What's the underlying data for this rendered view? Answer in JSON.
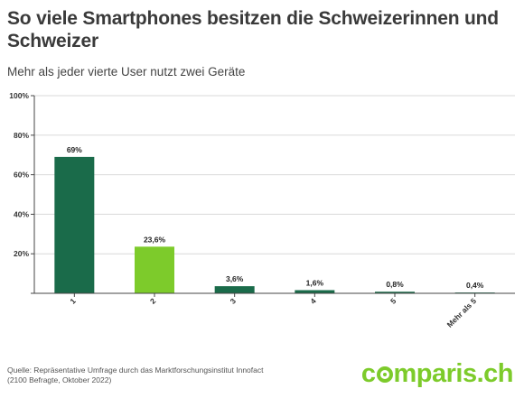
{
  "header": {
    "title": "So viele Smartphones besitzen die Schweizerinnen und Schweizer",
    "subtitle": "Mehr als jeder vierte User nutzt zwei Geräte"
  },
  "footer": {
    "source_line1": "Quelle: Repräsentative Umfrage durch das Marktforschungsinstitut Innofact",
    "source_line2": "(2100 Befragte, Oktober 2022)",
    "logo_pre": "c",
    "logo_post": "mparis.ch"
  },
  "colors": {
    "dark_green": "#1a6b4a",
    "light_green": "#7dcb2b",
    "axis": "#444444",
    "grid": "#d9d9d9"
  },
  "chart_data": {
    "type": "bar",
    "title": "So viele Smartphones besitzen die Schweizerinnen und Schweizer",
    "subtitle": "Mehr als jeder vierte User nutzt zwei Geräte",
    "categories": [
      "1",
      "2",
      "3",
      "4",
      "5",
      "Mehr als 5"
    ],
    "values": [
      69,
      23.6,
      3.6,
      1.6,
      0.8,
      0.4
    ],
    "value_labels": [
      "69%",
      "23,6%",
      "3,6%",
      "1,6%",
      "0,8%",
      "0,4%"
    ],
    "bar_colors": [
      "#1a6b4a",
      "#7dcb2b",
      "#1a6b4a",
      "#1a6b4a",
      "#1a6b4a",
      "#1a6b4a"
    ],
    "y_ticks": [
      0,
      20,
      40,
      60,
      80,
      100
    ],
    "y_tick_labels": [
      "",
      "20%",
      "40%",
      "60%",
      "80%",
      "100%"
    ],
    "ylim": [
      0,
      100
    ],
    "xlabel": "",
    "ylabel": "",
    "grid": true
  }
}
